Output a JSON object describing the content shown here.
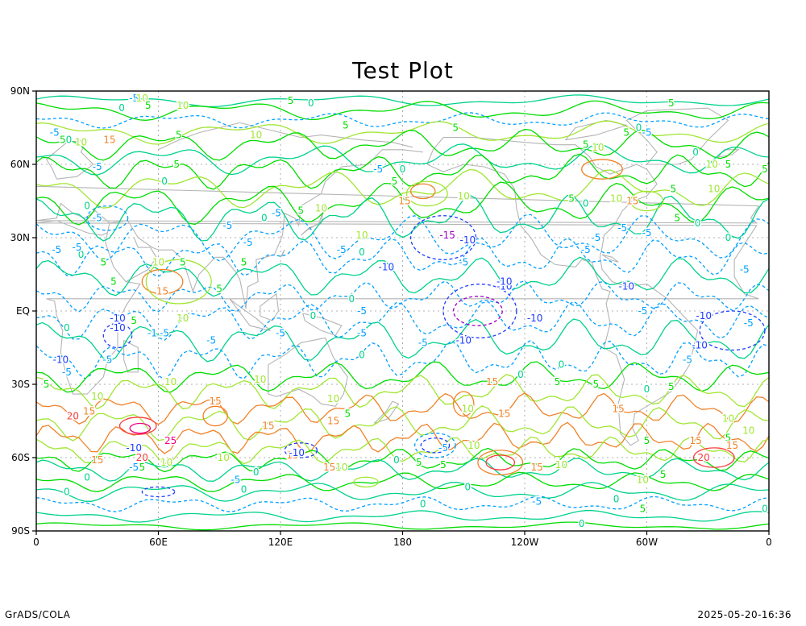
{
  "title": "Test Plot",
  "footer": {
    "left": "GrADS/COLA",
    "right": "2025-05-20-16:36"
  },
  "map": {
    "projection": "latlon",
    "lon_range": [
      0,
      360
    ],
    "lat_range": [
      -90,
      90
    ],
    "grid": true,
    "y_ticks": [
      {
        "lat": 90,
        "label": "90N"
      },
      {
        "lat": 60,
        "label": "60N"
      },
      {
        "lat": 30,
        "label": "30N"
      },
      {
        "lat": 0,
        "label": "EQ"
      },
      {
        "lat": -30,
        "label": "30S"
      },
      {
        "lat": -60,
        "label": "60S"
      },
      {
        "lat": -90,
        "label": "90S"
      }
    ],
    "x_ticks": [
      {
        "lon": 0,
        "label": "0"
      },
      {
        "lon": 60,
        "label": "60E"
      },
      {
        "lon": 120,
        "label": "120E"
      },
      {
        "lon": 180,
        "label": "180"
      },
      {
        "lon": 240,
        "label": "120W"
      },
      {
        "lon": 300,
        "label": "60W"
      },
      {
        "lon": 360,
        "label": "0"
      }
    ],
    "colors": {
      "coastline": "#b4b4b4",
      "levels": {
        "-15": "#a000c8",
        "-10": "#1e3cff",
        "-5": "#00a0ff",
        "0": "#00d28c",
        "5": "#00dc00",
        "10": "#a0e632",
        "15": "#f08228",
        "20": "#fa3c3c",
        "25": "#f00082"
      }
    }
  },
  "contour_labels": [
    {
      "lon": 42,
      "lat": 83,
      "text": "0"
    },
    {
      "lon": 48,
      "lat": 87,
      "text": "-5"
    },
    {
      "lon": 52,
      "lat": 87,
      "text": "10"
    },
    {
      "lon": 55,
      "lat": 84,
      "text": "5"
    },
    {
      "lon": 72,
      "lat": 84,
      "text": "10"
    },
    {
      "lon": 125,
      "lat": 86,
      "text": "5"
    },
    {
      "lon": 135,
      "lat": 85,
      "text": "0"
    },
    {
      "lon": 312,
      "lat": 85,
      "text": "5"
    },
    {
      "lon": 9,
      "lat": 73,
      "text": "-5"
    },
    {
      "lon": 13,
      "lat": 70,
      "text": "5"
    },
    {
      "lon": 16,
      "lat": 70,
      "text": "0"
    },
    {
      "lon": 22,
      "lat": 69,
      "text": "10"
    },
    {
      "lon": 36,
      "lat": 70,
      "text": "15"
    },
    {
      "lon": 70,
      "lat": 72,
      "text": "5"
    },
    {
      "lon": 108,
      "lat": 72,
      "text": "10"
    },
    {
      "lon": 152,
      "lat": 76,
      "text": "5"
    },
    {
      "lon": 206,
      "lat": 75,
      "text": "5"
    },
    {
      "lon": 290,
      "lat": 73,
      "text": "5"
    },
    {
      "lon": 296,
      "lat": 75,
      "text": "0"
    },
    {
      "lon": 300,
      "lat": 73,
      "text": "-5"
    },
    {
      "lon": 30,
      "lat": 59,
      "text": "-5"
    },
    {
      "lon": 69,
      "lat": 60,
      "text": "5"
    },
    {
      "lon": 168,
      "lat": 58,
      "text": "-5"
    },
    {
      "lon": 180,
      "lat": 58,
      "text": "0"
    },
    {
      "lon": 276,
      "lat": 67,
      "text": "10"
    },
    {
      "lon": 270,
      "lat": 68,
      "text": "5"
    },
    {
      "lon": 324,
      "lat": 65,
      "text": "0"
    },
    {
      "lon": 332,
      "lat": 60,
      "text": "10"
    },
    {
      "lon": 340,
      "lat": 60,
      "text": "5"
    },
    {
      "lon": 358,
      "lat": 58,
      "text": "5"
    },
    {
      "lon": 63,
      "lat": 53,
      "text": "0"
    },
    {
      "lon": 176,
      "lat": 53,
      "text": "5"
    },
    {
      "lon": 181,
      "lat": 45,
      "text": "15"
    },
    {
      "lon": 210,
      "lat": 47,
      "text": "10"
    },
    {
      "lon": 293,
      "lat": 45,
      "text": "15"
    },
    {
      "lon": 285,
      "lat": 46,
      "text": "10"
    },
    {
      "lon": 263,
      "lat": 46,
      "text": "5"
    },
    {
      "lon": 270,
      "lat": 44,
      "text": "0"
    },
    {
      "lon": 313,
      "lat": 50,
      "text": "5"
    },
    {
      "lon": 333,
      "lat": 50,
      "text": "10"
    },
    {
      "lon": 25,
      "lat": 43,
      "text": "0"
    },
    {
      "lon": 130,
      "lat": 41,
      "text": "5"
    },
    {
      "lon": 118,
      "lat": 40,
      "text": "-5"
    },
    {
      "lon": 112,
      "lat": 38,
      "text": "0"
    },
    {
      "lon": 140,
      "lat": 42,
      "text": "10"
    },
    {
      "lon": 315,
      "lat": 38,
      "text": "5"
    },
    {
      "lon": 325,
      "lat": 36,
      "text": "0"
    },
    {
      "lon": 30,
      "lat": 38,
      "text": "-5"
    },
    {
      "lon": 94,
      "lat": 35,
      "text": "-5"
    },
    {
      "lon": 288,
      "lat": 34,
      "text": "-5"
    },
    {
      "lon": 160,
      "lat": 31,
      "text": "10"
    },
    {
      "lon": 104,
      "lat": 28,
      "text": "-5"
    },
    {
      "lon": 212,
      "lat": 29,
      "text": "-10"
    },
    {
      "lon": 202,
      "lat": 31,
      "text": "-15"
    },
    {
      "lon": 275,
      "lat": 30,
      "text": "-5"
    },
    {
      "lon": 300,
      "lat": 32,
      "text": "-5"
    },
    {
      "lon": 150,
      "lat": 25,
      "text": "-5"
    },
    {
      "lon": 160,
      "lat": 24,
      "text": "0"
    },
    {
      "lon": 270,
      "lat": 25,
      "text": "-5"
    },
    {
      "lon": 340,
      "lat": 30,
      "text": "0"
    },
    {
      "lon": 10,
      "lat": 25,
      "text": "-5"
    },
    {
      "lon": 22,
      "lat": 23,
      "text": "0"
    },
    {
      "lon": 20,
      "lat": 26,
      "text": "-5"
    },
    {
      "lon": 33,
      "lat": 20,
      "text": "5"
    },
    {
      "lon": 60,
      "lat": 20,
      "text": "10"
    },
    {
      "lon": 72,
      "lat": 20,
      "text": "5"
    },
    {
      "lon": 102,
      "lat": 20,
      "text": "5"
    },
    {
      "lon": 172,
      "lat": 18,
      "text": "-10"
    },
    {
      "lon": 210,
      "lat": 20,
      "text": "-5"
    },
    {
      "lon": 230,
      "lat": 10,
      "text": "-10"
    },
    {
      "lon": 290,
      "lat": 10,
      "text": "-10"
    },
    {
      "lon": 348,
      "lat": 17,
      "text": "-5"
    },
    {
      "lon": 38,
      "lat": 12,
      "text": "5"
    },
    {
      "lon": 62,
      "lat": 8,
      "text": "15"
    },
    {
      "lon": 90,
      "lat": 9,
      "text": "5"
    },
    {
      "lon": 155,
      "lat": 5,
      "text": "0"
    },
    {
      "lon": 160,
      "lat": 0,
      "text": "-5"
    },
    {
      "lon": 230,
      "lat": 12,
      "text": "-10"
    },
    {
      "lon": 136,
      "lat": -2,
      "text": "0"
    },
    {
      "lon": 40,
      "lat": -3,
      "text": "-10"
    },
    {
      "lon": 48,
      "lat": -4,
      "text": "5"
    },
    {
      "lon": 72,
      "lat": -3,
      "text": "10"
    },
    {
      "lon": 245,
      "lat": -3,
      "text": "-10"
    },
    {
      "lon": 298,
      "lat": 0,
      "text": "-5"
    },
    {
      "lon": 350,
      "lat": -5,
      "text": "-5"
    },
    {
      "lon": 15,
      "lat": -7,
      "text": "0"
    },
    {
      "lon": 63,
      "lat": -9,
      "text": "-5"
    },
    {
      "lon": 57,
      "lat": -9,
      "text": "-1"
    },
    {
      "lon": 120,
      "lat": -9,
      "text": "-5"
    },
    {
      "lon": 160,
      "lat": -9,
      "text": "-5"
    },
    {
      "lon": 86,
      "lat": -12,
      "text": "-5"
    },
    {
      "lon": 210,
      "lat": -12,
      "text": "-10"
    },
    {
      "lon": 190,
      "lat": -13,
      "text": "-5"
    },
    {
      "lon": 326,
      "lat": -14,
      "text": "-10"
    },
    {
      "lon": 12,
      "lat": -20,
      "text": "-10"
    },
    {
      "lon": 35,
      "lat": -20,
      "text": "-5"
    },
    {
      "lon": 15,
      "lat": -25,
      "text": "-5"
    },
    {
      "lon": 160,
      "lat": -18,
      "text": "0"
    },
    {
      "lon": 258,
      "lat": -22,
      "text": "0"
    },
    {
      "lon": 320,
      "lat": -20,
      "text": "-5"
    },
    {
      "lon": 5,
      "lat": -30,
      "text": "5"
    },
    {
      "lon": 66,
      "lat": -29,
      "text": "10"
    },
    {
      "lon": 110,
      "lat": -28,
      "text": "10"
    },
    {
      "lon": 224,
      "lat": -29,
      "text": "15"
    },
    {
      "lon": 238,
      "lat": -26,
      "text": "0"
    },
    {
      "lon": 256,
      "lat": -29,
      "text": "5"
    },
    {
      "lon": 275,
      "lat": -30,
      "text": "5"
    },
    {
      "lon": 300,
      "lat": -32,
      "text": "0"
    },
    {
      "lon": 312,
      "lat": -31,
      "text": "5"
    },
    {
      "lon": 30,
      "lat": -35,
      "text": "10"
    },
    {
      "lon": 88,
      "lat": -37,
      "text": "15"
    },
    {
      "lon": 146,
      "lat": -36,
      "text": "10"
    },
    {
      "lon": 153,
      "lat": -42,
      "text": "5"
    },
    {
      "lon": 212,
      "lat": -40,
      "text": "10"
    },
    {
      "lon": 286,
      "lat": -40,
      "text": "15"
    },
    {
      "lon": 18,
      "lat": -43,
      "text": "20"
    },
    {
      "lon": 26,
      "lat": -41,
      "text": "15"
    },
    {
      "lon": 114,
      "lat": -47,
      "text": "15"
    },
    {
      "lon": 146,
      "lat": -45,
      "text": "15"
    },
    {
      "lon": 230,
      "lat": -42,
      "text": "15"
    },
    {
      "lon": 340,
      "lat": -44,
      "text": "10"
    },
    {
      "lon": 350,
      "lat": -49,
      "text": "10"
    },
    {
      "lon": 66,
      "lat": -53,
      "text": "25"
    },
    {
      "lon": 300,
      "lat": -53,
      "text": "5"
    },
    {
      "lon": 324,
      "lat": -53,
      "text": "15"
    },
    {
      "lon": 340,
      "lat": -52,
      "text": "5"
    },
    {
      "lon": 342,
      "lat": -55,
      "text": "15"
    },
    {
      "lon": 200,
      "lat": -56,
      "text": "-5"
    },
    {
      "lon": 215,
      "lat": -55,
      "text": "10"
    },
    {
      "lon": 48,
      "lat": -56,
      "text": "-10"
    },
    {
      "lon": 126,
      "lat": -59,
      "text": "15"
    },
    {
      "lon": 128,
      "lat": -58,
      "text": "-10"
    },
    {
      "lon": 92,
      "lat": -60,
      "text": "10"
    },
    {
      "lon": 30,
      "lat": -61,
      "text": "15"
    },
    {
      "lon": 52,
      "lat": -60,
      "text": "20"
    },
    {
      "lon": 64,
      "lat": -62,
      "text": "10"
    },
    {
      "lon": 177,
      "lat": -61,
      "text": "0"
    },
    {
      "lon": 188,
      "lat": -62,
      "text": "5"
    },
    {
      "lon": 328,
      "lat": -60,
      "text": "20"
    },
    {
      "lon": 48,
      "lat": -64,
      "text": "-5"
    },
    {
      "lon": 52,
      "lat": -64,
      "text": "5"
    },
    {
      "lon": 144,
      "lat": -64,
      "text": "15"
    },
    {
      "lon": 150,
      "lat": -64,
      "text": "10"
    },
    {
      "lon": 246,
      "lat": -64,
      "text": "15"
    },
    {
      "lon": 258,
      "lat": -63,
      "text": "10"
    },
    {
      "lon": 200,
      "lat": -63,
      "text": "5"
    },
    {
      "lon": 108,
      "lat": -66,
      "text": "0"
    },
    {
      "lon": 98,
      "lat": -69,
      "text": "-5"
    },
    {
      "lon": 25,
      "lat": -68,
      "text": "0"
    },
    {
      "lon": 298,
      "lat": -69,
      "text": "10"
    },
    {
      "lon": 308,
      "lat": -67,
      "text": "5"
    },
    {
      "lon": 102,
      "lat": -73,
      "text": "0"
    },
    {
      "lon": 15,
      "lat": -74,
      "text": "0"
    },
    {
      "lon": 212,
      "lat": -72,
      "text": "0"
    },
    {
      "lon": 246,
      "lat": -78,
      "text": "-5"
    },
    {
      "lon": 190,
      "lat": -79,
      "text": "0"
    },
    {
      "lon": 285,
      "lat": -77,
      "text": "0"
    },
    {
      "lon": 358,
      "lat": -81,
      "text": "0"
    },
    {
      "lon": 298,
      "lat": -81,
      "text": "5"
    },
    {
      "lon": 268,
      "lat": -87,
      "text": "0"
    },
    {
      "lon": 40,
      "lat": -7,
      "text": "-10"
    },
    {
      "lon": 328,
      "lat": -2,
      "text": "-10"
    }
  ]
}
